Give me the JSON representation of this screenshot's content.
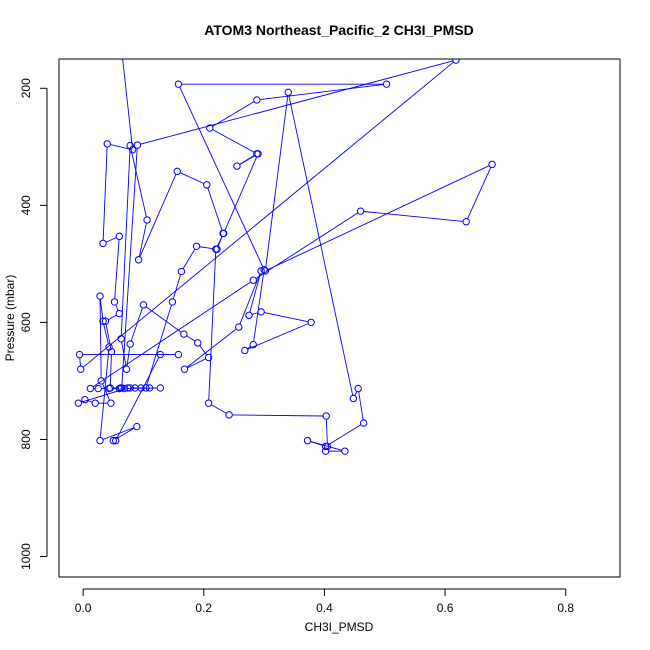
{
  "chart_data": {
    "type": "scatter",
    "title": "ATOM3 Northeast_Pacific_2 CH3I_PMSD",
    "xlabel": "CH3I_PMSD",
    "ylabel": "Pressure (mbar)",
    "xlim": [
      -0.04,
      0.89
    ],
    "ylim": [
      1035,
      150
    ],
    "y_inverted": true,
    "x_ticks": [
      0.0,
      0.2,
      0.4,
      0.6,
      0.8
    ],
    "x_tick_labels": [
      "0.0",
      "0.2",
      "0.4",
      "0.6",
      "0.8"
    ],
    "y_ticks": [
      200,
      400,
      600,
      800,
      1000
    ],
    "y_tick_labels": [
      "200",
      "400",
      "600",
      "800",
      "1000"
    ],
    "grid": false,
    "legend": "none",
    "series_color": "#0000ff",
    "series": [
      {
        "points": [
          [
            0.065,
            145
          ],
          [
            0.082,
            305
          ],
          [
            0.04,
            295
          ],
          [
            0.033,
            465
          ],
          [
            0.06,
            453
          ],
          [
            0.052,
            565
          ],
          [
            0.06,
            585
          ],
          [
            0.037,
            598
          ],
          [
            0.047,
            650
          ],
          [
            0.045,
            712
          ],
          [
            0.062,
            712
          ],
          [
            0.078,
            712
          ],
          [
            0.104,
            712
          ],
          [
            0.148,
            565
          ],
          [
            0.163,
            513
          ],
          [
            0.188,
            470
          ],
          [
            0.222,
            475
          ],
          [
            0.232,
            448
          ],
          [
            0.205,
            365
          ],
          [
            0.156,
            342
          ],
          [
            0.092,
            493
          ],
          [
            0.106,
            425
          ],
          [
            0.078,
            298
          ],
          [
            0.063,
            628
          ],
          [
            0.072,
            680
          ],
          [
            0.078,
            637
          ],
          [
            0.1,
            570
          ],
          [
            0.167,
            620
          ],
          [
            0.19,
            635
          ],
          [
            0.208,
            660
          ],
          [
            0.168,
            680
          ],
          [
            0.258,
            608
          ],
          [
            0.295,
            512
          ],
          [
            0.275,
            588
          ],
          [
            0.295,
            582
          ],
          [
            0.378,
            600
          ],
          [
            0.268,
            648
          ],
          [
            0.282,
            638
          ],
          [
            0.3,
            510
          ],
          [
            0.158,
            193
          ],
          [
            0.503,
            193
          ],
          [
            0.288,
            220
          ],
          [
            0.21,
            268
          ],
          [
            0.288,
            312
          ],
          [
            0.255,
            333
          ],
          [
            0.29,
            312
          ],
          [
            0.233,
            448
          ],
          [
            0.22,
            475
          ],
          [
            0.208,
            738
          ],
          [
            0.242,
            758
          ],
          [
            0.403,
            760
          ],
          [
            0.405,
            812
          ],
          [
            0.402,
            820
          ],
          [
            0.434,
            820
          ],
          [
            0.372,
            802
          ],
          [
            0.402,
            812
          ],
          [
            0.465,
            772
          ],
          [
            0.456,
            713
          ],
          [
            0.448,
            730
          ],
          [
            0.34,
            207
          ],
          [
            0.302,
            512
          ],
          [
            0.678,
            330
          ],
          [
            0.635,
            428
          ],
          [
            0.46,
            410
          ],
          [
            0.282,
            528
          ],
          [
            0.012,
            713
          ],
          [
            0.025,
            713
          ],
          [
            0.043,
            713
          ],
          [
            0.06,
            713
          ],
          [
            0.068,
            713
          ],
          [
            0.128,
            712
          ],
          [
            0.11,
            712
          ],
          [
            0.096,
            712
          ],
          [
            0.086,
            712
          ],
          [
            0.074,
            712
          ],
          [
            -0.008,
            738
          ],
          [
            0.003,
            732
          ],
          [
            0.02,
            738
          ],
          [
            0.046,
            738
          ],
          [
            0.03,
            700
          ],
          [
            0.028,
            555
          ],
          [
            0.033,
            598
          ],
          [
            0.043,
            642
          ],
          [
            0.028,
            802
          ],
          [
            0.089,
            778
          ],
          [
            0.05,
            802
          ],
          [
            0.054,
            802
          ],
          [
            0.128,
            655
          ],
          [
            0.158,
            655
          ],
          [
            -0.006,
            655
          ],
          [
            -0.004,
            680
          ],
          [
            0.618,
            152
          ],
          [
            0.09,
            297
          ],
          [
            0.064,
            712
          ]
        ]
      }
    ]
  }
}
